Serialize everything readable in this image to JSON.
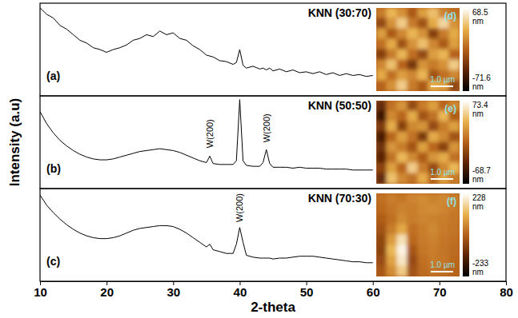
{
  "chart_data": [
    {
      "type": "line",
      "label": "(a)",
      "title": "KNN (30:70)",
      "color": "#000000",
      "xlim": [
        10,
        80
      ],
      "ylim": [
        0,
        1
      ],
      "tick_labels": false,
      "x": [
        10,
        11,
        12,
        13,
        14,
        15,
        16,
        17,
        18,
        19,
        20,
        21,
        22,
        23,
        24,
        25,
        26,
        27,
        28,
        29,
        30,
        31,
        32,
        33,
        34,
        35,
        35.5,
        36,
        37,
        38,
        39,
        39.5,
        40,
        40.5,
        41,
        42,
        43,
        43.5,
        44,
        44.5,
        45,
        46,
        47,
        48,
        49,
        50,
        51,
        52,
        53,
        54,
        55,
        56,
        57,
        58,
        59,
        60
      ],
      "values": [
        0.95,
        0.88,
        0.84,
        0.76,
        0.72,
        0.66,
        0.6,
        0.57,
        0.52,
        0.5,
        0.47,
        0.5,
        0.52,
        0.55,
        0.6,
        0.62,
        0.66,
        0.64,
        0.7,
        0.66,
        0.68,
        0.62,
        0.6,
        0.54,
        0.5,
        0.44,
        0.43,
        0.42,
        0.38,
        0.37,
        0.34,
        0.36,
        0.5,
        0.33,
        0.3,
        0.32,
        0.29,
        0.3,
        0.28,
        0.3,
        0.27,
        0.29,
        0.26,
        0.28,
        0.25,
        0.26,
        0.24,
        0.26,
        0.23,
        0.25,
        0.22,
        0.24,
        0.22,
        0.23,
        0.21,
        0.22
      ]
    },
    {
      "type": "line",
      "label": "(b)",
      "title": "KNN (50:50)",
      "color": "#000000",
      "ylabel": "Intensity (a.u)",
      "xlim": [
        10,
        80
      ],
      "ylim": [
        0,
        1
      ],
      "tick_labels": false,
      "x": [
        10,
        11,
        12,
        13,
        14,
        15,
        16,
        17,
        18,
        19,
        20,
        21,
        22,
        23,
        24,
        25,
        26,
        27,
        28,
        29,
        30,
        31,
        32,
        33,
        34,
        35,
        35.5,
        36,
        37,
        38,
        39,
        39.5,
        40,
        40.5,
        41,
        42,
        43,
        43.5,
        44,
        44.5,
        45,
        46,
        47,
        48,
        49,
        50,
        51,
        52,
        53,
        54,
        55,
        56,
        57,
        58,
        59,
        60
      ],
      "values": [
        0.83,
        0.7,
        0.6,
        0.52,
        0.46,
        0.41,
        0.37,
        0.34,
        0.32,
        0.31,
        0.31,
        0.32,
        0.34,
        0.36,
        0.38,
        0.4,
        0.41,
        0.42,
        0.43,
        0.42,
        0.41,
        0.39,
        0.36,
        0.33,
        0.3,
        0.28,
        0.35,
        0.27,
        0.26,
        0.26,
        0.26,
        0.3,
        0.96,
        0.3,
        0.25,
        0.24,
        0.24,
        0.28,
        0.42,
        0.27,
        0.23,
        0.23,
        0.23,
        0.22,
        0.23,
        0.22,
        0.22,
        0.22,
        0.21,
        0.21,
        0.21,
        0.21,
        0.2,
        0.2,
        0.2,
        0.2
      ],
      "annotations": [
        {
          "text": "W(200)",
          "x": 35.5,
          "y": 0.42
        },
        {
          "text": "W(200)",
          "x": 44,
          "y": 0.48
        }
      ]
    },
    {
      "type": "line",
      "label": "(c)",
      "title": "KNN (70:30)",
      "color": "#000000",
      "xlabel": "2-theta",
      "xlim": [
        10,
        80
      ],
      "ylim": [
        0,
        1
      ],
      "xticks": [
        10,
        20,
        30,
        40,
        50,
        60,
        70,
        80
      ],
      "tick_labels": "x",
      "x": [
        10,
        11,
        12,
        13,
        14,
        15,
        16,
        17,
        18,
        19,
        20,
        21,
        22,
        23,
        24,
        25,
        26,
        27,
        28,
        29,
        30,
        31,
        32,
        33,
        34,
        35,
        35.5,
        36,
        37,
        38,
        39,
        39.5,
        40,
        40.5,
        41,
        42,
        43,
        43.5,
        44,
        44.5,
        45,
        46,
        47,
        48,
        49,
        50,
        51,
        52,
        53,
        54,
        55,
        56,
        57,
        58,
        59,
        60
      ],
      "values": [
        0.93,
        0.82,
        0.74,
        0.67,
        0.61,
        0.56,
        0.52,
        0.49,
        0.47,
        0.46,
        0.46,
        0.47,
        0.49,
        0.52,
        0.55,
        0.57,
        0.58,
        0.59,
        0.6,
        0.6,
        0.59,
        0.56,
        0.52,
        0.47,
        0.42,
        0.37,
        0.4,
        0.34,
        0.32,
        0.3,
        0.3,
        0.4,
        0.58,
        0.42,
        0.28,
        0.26,
        0.25,
        0.25,
        0.25,
        0.25,
        0.24,
        0.25,
        0.25,
        0.26,
        0.27,
        0.27,
        0.27,
        0.26,
        0.25,
        0.24,
        0.23,
        0.22,
        0.21,
        0.21,
        0.2,
        0.2
      ],
      "annotations": [
        {
          "text": "W(200)",
          "x": 40,
          "y": 0.62
        }
      ]
    },
    {
      "type": "heatmap",
      "label": "(d)",
      "tick_labels": false,
      "cells": [
        [
          10,
          35,
          20,
          -5,
          25,
          40,
          15,
          5
        ],
        [
          -15,
          20,
          45,
          10,
          -10,
          30,
          50,
          20
        ],
        [
          25,
          -5,
          15,
          35,
          20,
          -20,
          10,
          30
        ],
        [
          5,
          30,
          -10,
          20,
          40,
          15,
          -5,
          25
        ],
        [
          -20,
          10,
          35,
          5,
          -15,
          25,
          35,
          0
        ],
        [
          15,
          40,
          0,
          -25,
          20,
          10,
          20,
          45
        ],
        [
          30,
          5,
          25,
          15,
          35,
          -10,
          5,
          15
        ],
        [
          0,
          20,
          45,
          10,
          -5,
          30,
          25,
          -15
        ]
      ],
      "colorbar_range": [
        -71.6,
        68.5
      ],
      "colorbar_ticks": [
        {
          "value": 68.5,
          "label": "68.5 nm"
        },
        {
          "value": -71.6,
          "label": "-71.6 nm"
        }
      ],
      "annotations": [
        {
          "text": "1.0 µm"
        }
      ]
    },
    {
      "type": "heatmap",
      "label": "(e)",
      "tick_labels": false,
      "cells": [
        [
          -30,
          10,
          25,
          -10,
          15,
          30,
          5,
          20
        ],
        [
          -45,
          20,
          5,
          35,
          -5,
          10,
          40,
          0
        ],
        [
          -20,
          35,
          -15,
          20,
          25,
          -10,
          15,
          30
        ],
        [
          -40,
          5,
          30,
          10,
          -20,
          35,
          20,
          -5
        ],
        [
          -25,
          25,
          15,
          -5,
          30,
          5,
          -15,
          25
        ],
        [
          -35,
          10,
          40,
          20,
          0,
          25,
          35,
          10
        ],
        [
          -15,
          30,
          5,
          50,
          15,
          -10,
          20,
          40
        ],
        [
          -30,
          45,
          20,
          10,
          35,
          5,
          30,
          15
        ]
      ],
      "colorbar_range": [
        -68.7,
        73.4
      ],
      "colorbar_ticks": [
        {
          "value": 73.4,
          "label": "73.4 nm"
        },
        {
          "value": -68.7,
          "label": "-68.7 nm"
        }
      ],
      "annotations": [
        {
          "text": "1.0 µm"
        }
      ]
    },
    {
      "type": "heatmap",
      "label": "(f)",
      "tick_labels": false,
      "cells": [
        [
          20,
          40,
          30,
          50,
          60,
          45,
          55,
          40
        ],
        [
          10,
          30,
          45,
          40,
          55,
          60,
          50,
          35
        ],
        [
          -10,
          20,
          60,
          35,
          50,
          45,
          40,
          30
        ],
        [
          -30,
          40,
          100,
          20,
          40,
          55,
          35,
          25
        ],
        [
          -50,
          80,
          180,
          10,
          35,
          45,
          30,
          20
        ],
        [
          -60,
          120,
          210,
          -20,
          30,
          40,
          25,
          15
        ],
        [
          -40,
          90,
          190,
          -40,
          20,
          35,
          30,
          10
        ],
        [
          -20,
          60,
          150,
          -30,
          15,
          25,
          20,
          5
        ]
      ],
      "colorbar_range": [
        -233,
        228
      ],
      "colorbar_ticks": [
        {
          "value": 228,
          "label": "228 nm"
        },
        {
          "value": -233,
          "label": "-233 nm"
        }
      ],
      "annotations": [
        {
          "text": "1.0 µm"
        }
      ]
    }
  ]
}
